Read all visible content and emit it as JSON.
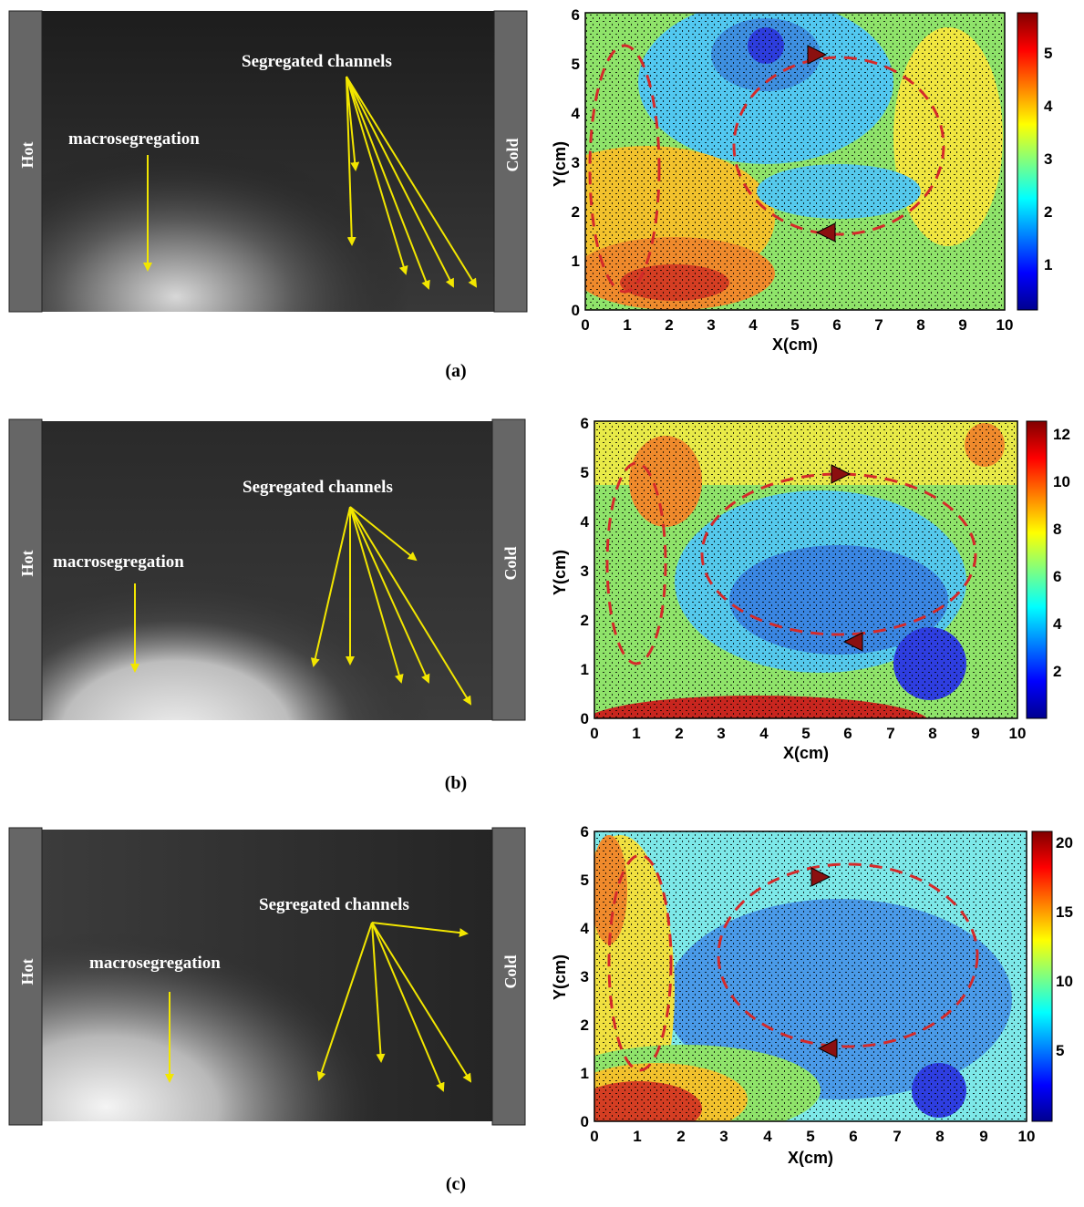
{
  "panels": [
    {
      "caption": "(a)",
      "photo": {
        "hot_label": "Hot",
        "cold_label": "Cold",
        "macro_label": "macrosegregation",
        "channels_label": "Segregated channels",
        "bright_region": "bottom-left"
      },
      "map": {
        "xlabel": "X(cm)",
        "ylabel": "Y(cm)",
        "x_ticks": [
          "0",
          "1",
          "2",
          "3",
          "4",
          "5",
          "6",
          "7",
          "8",
          "9",
          "10"
        ],
        "y_ticks": [
          "0",
          "1",
          "2",
          "3",
          "4",
          "5",
          "6"
        ],
        "colorbar_ticks": [
          "1",
          "2",
          "3",
          "4",
          "5"
        ],
        "colorbar_range": [
          0,
          5.6
        ]
      }
    },
    {
      "caption": "(b)",
      "photo": {
        "hot_label": "Hot",
        "cold_label": "Cold",
        "macro_label": "macrosegregation",
        "channels_label": "Segregated channels",
        "bright_region": "bottom"
      },
      "map": {
        "xlabel": "X(cm)",
        "ylabel": "Y(cm)",
        "x_ticks": [
          "0",
          "1",
          "2",
          "3",
          "4",
          "5",
          "6",
          "7",
          "8",
          "9",
          "10"
        ],
        "y_ticks": [
          "0",
          "1",
          "2",
          "3",
          "4",
          "5",
          "6"
        ],
        "colorbar_ticks": [
          "2",
          "4",
          "6",
          "8",
          "10",
          "12"
        ],
        "colorbar_range": [
          0,
          12.5
        ]
      }
    },
    {
      "caption": "(c)",
      "photo": {
        "hot_label": "Hot",
        "cold_label": "Cold",
        "macro_label": "macrosegregation",
        "channels_label": "Segregated channels",
        "bright_region": "bottom-left"
      },
      "map": {
        "xlabel": "X(cm)",
        "ylabel": "Y(cm)",
        "x_ticks": [
          "0",
          "1",
          "2",
          "3",
          "4",
          "5",
          "6",
          "7",
          "8",
          "9",
          "10"
        ],
        "y_ticks": [
          "0",
          "1",
          "2",
          "3",
          "4",
          "5",
          "6"
        ],
        "colorbar_ticks": [
          "5",
          "10",
          "15",
          "20"
        ],
        "colorbar_range": [
          0,
          21
        ]
      }
    }
  ],
  "colors": {
    "arrow": "#f2e600",
    "loop": "#d42a2a",
    "bar": "#666666"
  }
}
